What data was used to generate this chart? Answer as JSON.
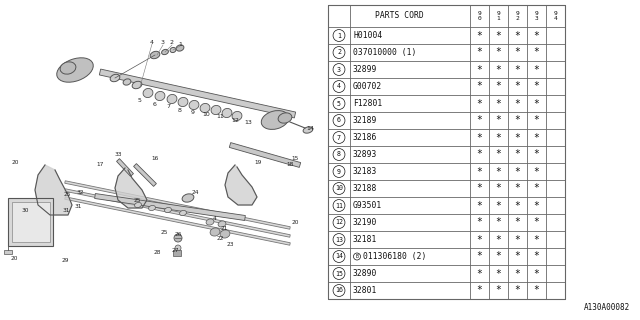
{
  "bg_color": "#ffffff",
  "rows": [
    {
      "num": "1",
      "code": "H01004",
      "b_prefix": false,
      "stars": [
        1,
        1,
        1,
        1,
        0
      ]
    },
    {
      "num": "2",
      "code": "037010000 (1)",
      "b_prefix": false,
      "stars": [
        1,
        1,
        1,
        1,
        0
      ]
    },
    {
      "num": "3",
      "code": "32899",
      "b_prefix": false,
      "stars": [
        1,
        1,
        1,
        1,
        0
      ]
    },
    {
      "num": "4",
      "code": "G00702",
      "b_prefix": false,
      "stars": [
        1,
        1,
        1,
        1,
        0
      ]
    },
    {
      "num": "5",
      "code": "F12801",
      "b_prefix": false,
      "stars": [
        1,
        1,
        1,
        1,
        0
      ]
    },
    {
      "num": "6",
      "code": "32189",
      "b_prefix": false,
      "stars": [
        1,
        1,
        1,
        1,
        0
      ]
    },
    {
      "num": "7",
      "code": "32186",
      "b_prefix": false,
      "stars": [
        1,
        1,
        1,
        1,
        0
      ]
    },
    {
      "num": "8",
      "code": "32893",
      "b_prefix": false,
      "stars": [
        1,
        1,
        1,
        1,
        0
      ]
    },
    {
      "num": "9",
      "code": "32183",
      "b_prefix": false,
      "stars": [
        1,
        1,
        1,
        1,
        0
      ]
    },
    {
      "num": "10",
      "code": "32188",
      "b_prefix": false,
      "stars": [
        1,
        1,
        1,
        1,
        0
      ]
    },
    {
      "num": "11",
      "code": "G93501",
      "b_prefix": false,
      "stars": [
        1,
        1,
        1,
        1,
        0
      ]
    },
    {
      "num": "12",
      "code": "32190",
      "b_prefix": false,
      "stars": [
        1,
        1,
        1,
        1,
        0
      ]
    },
    {
      "num": "13",
      "code": "32181",
      "b_prefix": false,
      "stars": [
        1,
        1,
        1,
        1,
        0
      ]
    },
    {
      "num": "14",
      "code": "011306180 (2)",
      "b_prefix": true,
      "stars": [
        1,
        1,
        1,
        1,
        0
      ]
    },
    {
      "num": "15",
      "code": "32890",
      "b_prefix": false,
      "stars": [
        1,
        1,
        1,
        1,
        0
      ]
    },
    {
      "num": "16",
      "code": "32801",
      "b_prefix": false,
      "stars": [
        1,
        1,
        1,
        1,
        0
      ]
    }
  ],
  "year_cols": [
    "9\n0",
    "9\n1",
    "9\n2",
    "9\n3",
    "9\n4"
  ],
  "diagram_label": "A130A00082",
  "line_color": "#666666",
  "text_color": "#111111",
  "part_color": "#aaaaaa",
  "part_edge": "#555555"
}
